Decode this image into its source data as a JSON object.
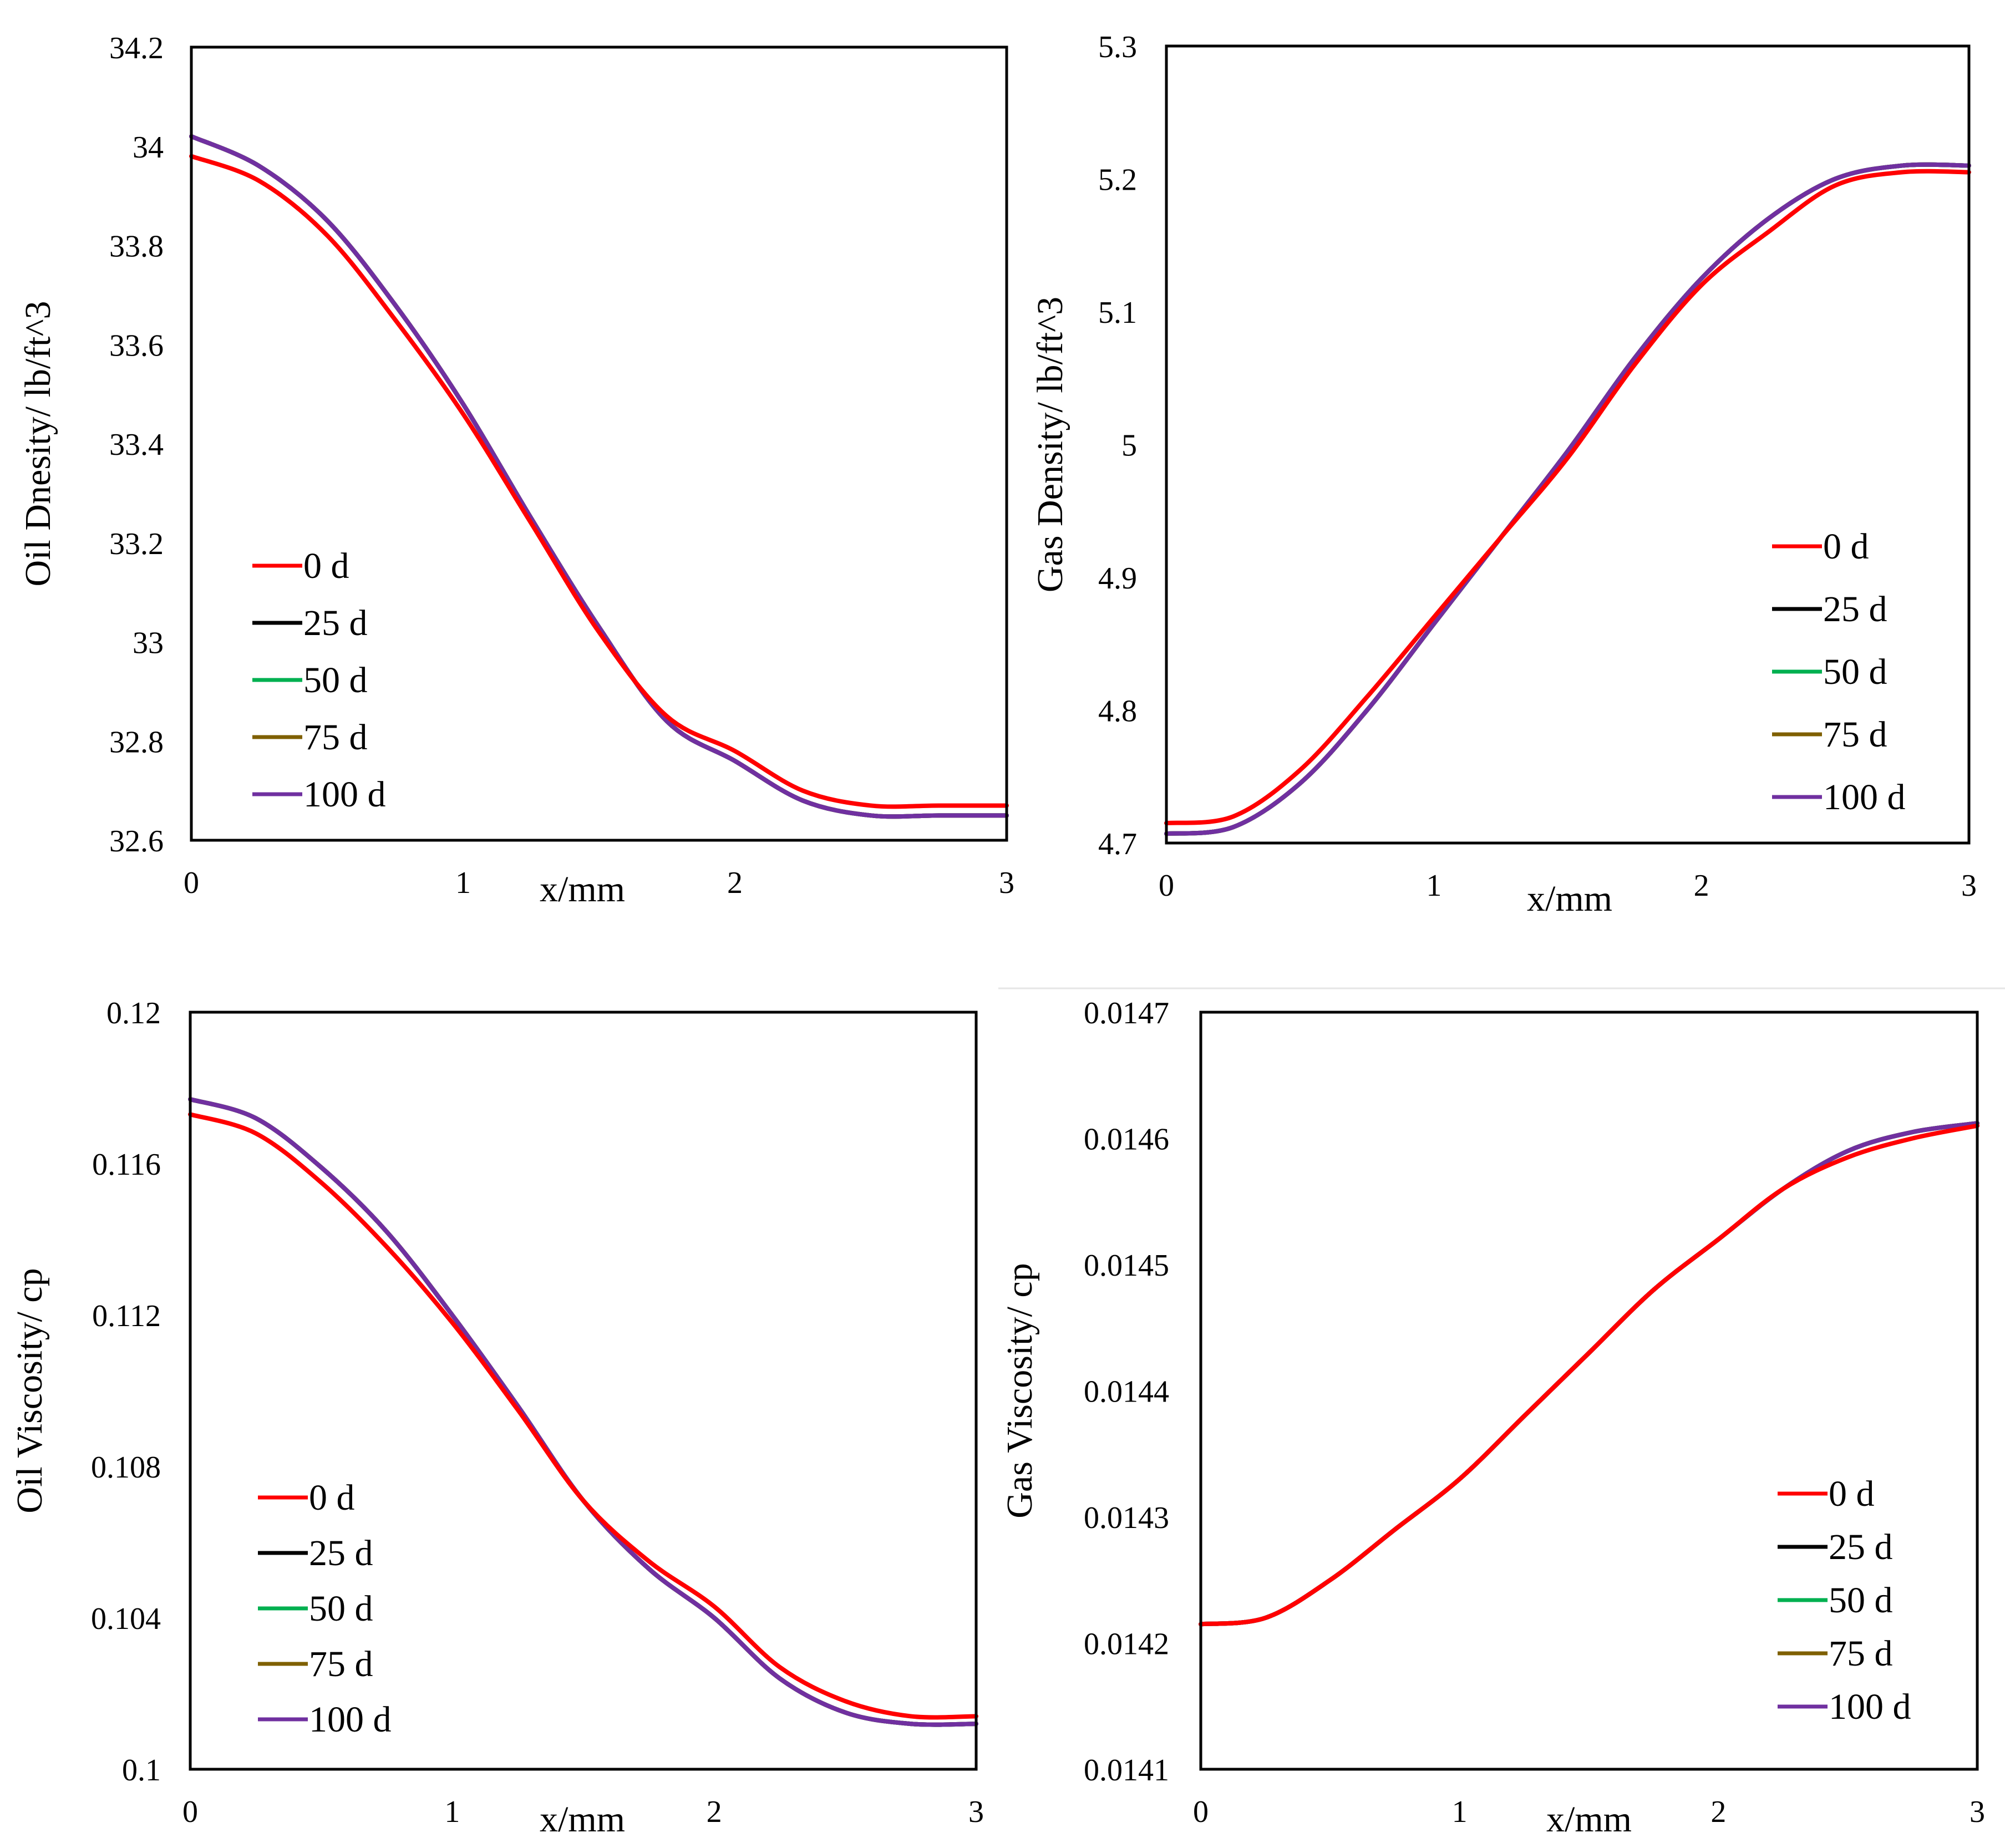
{
  "series_meta": [
    {
      "name": "0 d",
      "color": "#ff0000"
    },
    {
      "name": "25 d",
      "color": "#000000"
    },
    {
      "name": "50 d",
      "color": "#00b050"
    },
    {
      "name": "75 d",
      "color": "#7f6000"
    },
    {
      "name": "100 d",
      "color": "#7030a0"
    }
  ],
  "chart_data": [
    {
      "id": "oil-density",
      "type": "line",
      "title": "",
      "xlabel": "x/mm",
      "ylabel": "Oil Dnesity/ lb/ft^3",
      "xlim": [
        0,
        3
      ],
      "ylim": [
        32.6,
        34.2
      ],
      "xticks": [
        "0",
        "1",
        "2",
        "3"
      ],
      "yticks": [
        "32.6",
        "32.8",
        "33",
        "33.2",
        "33.4",
        "33.6",
        "33.8",
        "34",
        "34.2"
      ],
      "legend_position": "bottom-left",
      "x": [
        0,
        0.25,
        0.5,
        0.75,
        1,
        1.25,
        1.5,
        1.75,
        2,
        2.25,
        2.5,
        2.75,
        3
      ],
      "series": [
        {
          "name": "0 d",
          "values": [
            33.98,
            33.93,
            33.82,
            33.65,
            33.46,
            33.24,
            33.02,
            32.85,
            32.78,
            32.7,
            32.67,
            32.67,
            32.67
          ]
        },
        {
          "name": "25 d",
          "values": [
            34.02,
            33.96,
            33.85,
            33.68,
            33.48,
            33.25,
            33.03,
            32.84,
            32.76,
            32.68,
            32.65,
            32.65,
            32.65
          ]
        },
        {
          "name": "50 d",
          "values": [
            34.02,
            33.96,
            33.85,
            33.68,
            33.48,
            33.25,
            33.03,
            32.84,
            32.76,
            32.68,
            32.65,
            32.65,
            32.65
          ]
        },
        {
          "name": "75 d",
          "values": [
            34.02,
            33.96,
            33.85,
            33.68,
            33.48,
            33.25,
            33.03,
            32.84,
            32.76,
            32.68,
            32.65,
            32.65,
            32.65
          ]
        },
        {
          "name": "100 d",
          "values": [
            34.02,
            33.96,
            33.85,
            33.68,
            33.48,
            33.25,
            33.03,
            32.84,
            32.76,
            32.68,
            32.65,
            32.65,
            32.65
          ]
        }
      ]
    },
    {
      "id": "gas-density",
      "type": "line",
      "title": "",
      "xlabel": "x/mm",
      "ylabel": "Gas Density/ lb/ft^3",
      "xlim": [
        0,
        3
      ],
      "ylim": [
        4.7,
        5.3
      ],
      "xticks": [
        "0",
        "1",
        "2",
        "3"
      ],
      "yticks": [
        "4.7",
        "4.8",
        "4.9",
        "5",
        "5.1",
        "5.2",
        "5.3"
      ],
      "legend_position": "bottom-right",
      "x": [
        0,
        0.25,
        0.5,
        0.75,
        1,
        1.25,
        1.5,
        1.75,
        2,
        2.25,
        2.5,
        2.75,
        3
      ],
      "series": [
        {
          "name": "0 d",
          "values": [
            4.715,
            4.72,
            4.755,
            4.81,
            4.87,
            4.93,
            4.99,
            5.06,
            5.12,
            5.16,
            5.195,
            5.205,
            5.205
          ]
        },
        {
          "name": "25 d",
          "values": [
            4.707,
            4.712,
            4.745,
            4.8,
            4.865,
            4.93,
            4.995,
            5.065,
            5.125,
            5.17,
            5.2,
            5.21,
            5.21
          ]
        },
        {
          "name": "50 d",
          "values": [
            4.707,
            4.712,
            4.745,
            4.8,
            4.865,
            4.93,
            4.995,
            5.065,
            5.125,
            5.17,
            5.2,
            5.21,
            5.21
          ]
        },
        {
          "name": "75 d",
          "values": [
            4.707,
            4.712,
            4.745,
            4.8,
            4.865,
            4.93,
            4.995,
            5.065,
            5.125,
            5.17,
            5.2,
            5.21,
            5.21
          ]
        },
        {
          "name": "100 d",
          "values": [
            4.707,
            4.712,
            4.745,
            4.8,
            4.865,
            4.93,
            4.995,
            5.065,
            5.125,
            5.17,
            5.2,
            5.21,
            5.21
          ]
        }
      ]
    },
    {
      "id": "oil-viscosity",
      "type": "line",
      "title": "",
      "xlabel": "x/mm",
      "ylabel": "Oil Viscosity/ cp",
      "xlim": [
        0,
        3
      ],
      "ylim": [
        0.1,
        0.12
      ],
      "xticks": [
        "0",
        "1",
        "2",
        "3"
      ],
      "yticks": [
        "0.1",
        "0.104",
        "0.108",
        "0.112",
        "0.116",
        "0.12"
      ],
      "legend_position": "bottom-left",
      "x": [
        0,
        0.25,
        0.5,
        0.75,
        1,
        1.25,
        1.5,
        1.75,
        2,
        2.25,
        2.5,
        2.75,
        3
      ],
      "series": [
        {
          "name": "0 d",
          "values": [
            0.1173,
            0.1168,
            0.1155,
            0.1138,
            0.1118,
            0.1095,
            0.1071,
            0.1055,
            0.1043,
            0.1027,
            0.1018,
            0.1014,
            0.1014
          ]
        },
        {
          "name": "25 d",
          "values": [
            0.1177,
            0.1172,
            0.1159,
            0.1142,
            0.112,
            0.1096,
            0.1071,
            0.1053,
            0.104,
            0.1024,
            0.1015,
            0.1012,
            0.1012
          ]
        },
        {
          "name": "50 d",
          "values": [
            0.1177,
            0.1172,
            0.1159,
            0.1142,
            0.112,
            0.1096,
            0.1071,
            0.1053,
            0.104,
            0.1024,
            0.1015,
            0.1012,
            0.1012
          ]
        },
        {
          "name": "75 d",
          "values": [
            0.1177,
            0.1172,
            0.1159,
            0.1142,
            0.112,
            0.1096,
            0.1071,
            0.1053,
            0.104,
            0.1024,
            0.1015,
            0.1012,
            0.1012
          ]
        },
        {
          "name": "100 d",
          "values": [
            0.1177,
            0.1172,
            0.1159,
            0.1142,
            0.112,
            0.1096,
            0.1071,
            0.1053,
            0.104,
            0.1024,
            0.1015,
            0.1012,
            0.1012
          ]
        }
      ]
    },
    {
      "id": "gas-viscosity",
      "type": "line",
      "title": "",
      "xlabel": "x/mm",
      "ylabel": "Gas Viscosity/ cp",
      "xlim": [
        0,
        3
      ],
      "ylim": [
        0.0141,
        0.0147
      ],
      "xticks": [
        "0",
        "1",
        "2",
        "3"
      ],
      "yticks": [
        "0.0141",
        "0.0142",
        "0.0143",
        "0.0144",
        "0.0145",
        "0.0146",
        "0.0147"
      ],
      "legend_position": "bottom-right",
      "x": [
        0,
        0.25,
        0.5,
        0.75,
        1,
        1.25,
        1.5,
        1.75,
        2,
        2.25,
        2.5,
        2.75,
        3
      ],
      "series": [
        {
          "name": "0 d",
          "values": [
            0.014215,
            0.01422,
            0.01425,
            0.01429,
            0.01433,
            0.01438,
            0.01443,
            0.01448,
            0.01452,
            0.01456,
            0.014585,
            0.0146,
            0.01461
          ]
        },
        {
          "name": "25 d",
          "values": [
            0.014215,
            0.01422,
            0.01425,
            0.01429,
            0.01433,
            0.01438,
            0.01443,
            0.01448,
            0.01452,
            0.01456,
            0.01459,
            0.014605,
            0.014612
          ]
        },
        {
          "name": "50 d",
          "values": [
            0.014215,
            0.01422,
            0.01425,
            0.01429,
            0.01433,
            0.01438,
            0.01443,
            0.01448,
            0.01452,
            0.01456,
            0.01459,
            0.014605,
            0.014612
          ]
        },
        {
          "name": "75 d",
          "values": [
            0.014215,
            0.01422,
            0.01425,
            0.01429,
            0.01433,
            0.01438,
            0.01443,
            0.01448,
            0.01452,
            0.01456,
            0.01459,
            0.014605,
            0.014612
          ]
        },
        {
          "name": "100 d",
          "values": [
            0.014215,
            0.01422,
            0.01425,
            0.01429,
            0.01433,
            0.01438,
            0.01443,
            0.01448,
            0.01452,
            0.01456,
            0.01459,
            0.014605,
            0.014612
          ]
        }
      ]
    }
  ]
}
